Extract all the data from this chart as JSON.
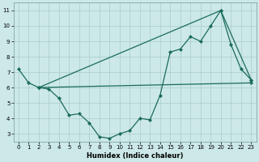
{
  "xlabel": "Humidex (Indice chaleur)",
  "bg_color": "#cce8e8",
  "grid_color": "#aacccc",
  "line_color": "#1a6b5a",
  "xlim": [
    -0.5,
    23.5
  ],
  "ylim": [
    2.5,
    11.5
  ],
  "xticks": [
    0,
    1,
    2,
    3,
    4,
    5,
    6,
    7,
    8,
    9,
    10,
    11,
    12,
    13,
    14,
    15,
    16,
    17,
    18,
    19,
    20,
    21,
    22,
    23
  ],
  "yticks": [
    3,
    4,
    5,
    6,
    7,
    8,
    9,
    10,
    11
  ],
  "line1_x": [
    0,
    1,
    2,
    3,
    4,
    5,
    6,
    7,
    8,
    9,
    10,
    11,
    12,
    13,
    14,
    15,
    16,
    17,
    18,
    19,
    20,
    21,
    22,
    23
  ],
  "line1_y": [
    7.2,
    6.3,
    6.0,
    5.9,
    5.3,
    4.2,
    4.3,
    3.7,
    2.8,
    2.7,
    3.0,
    3.2,
    4.0,
    3.9,
    5.5,
    8.3,
    8.5,
    9.3,
    9.0,
    10.0,
    11.0,
    8.8,
    7.2,
    6.5
  ],
  "line2_x": [
    2,
    23
  ],
  "line2_y": [
    6.0,
    6.3
  ],
  "line3_x": [
    2,
    20,
    23
  ],
  "line3_y": [
    6.0,
    11.0,
    6.5
  ]
}
